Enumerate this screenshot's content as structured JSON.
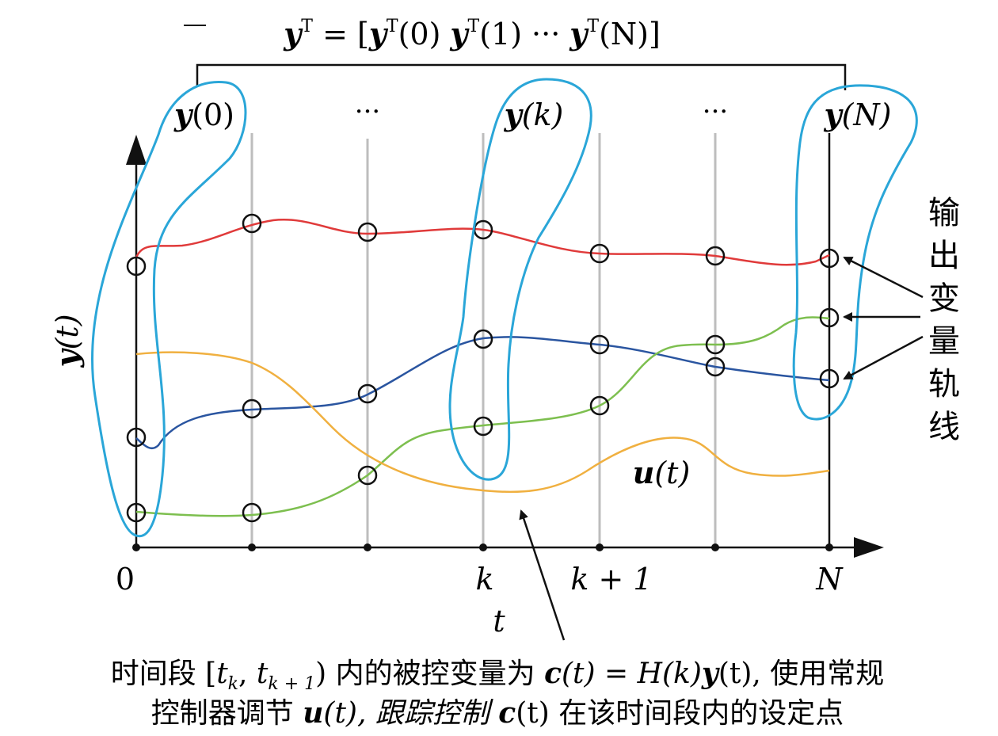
{
  "header": {
    "vector_lhs": "y",
    "vector_sup": "T",
    "equals_open": " = [",
    "items": [
      {
        "sym": "y",
        "sup": "T",
        "arg": "(0)"
      },
      {
        "sym": "y",
        "sup": "T",
        "arg": "(1)"
      },
      {
        "sym": "···"
      },
      {
        "sym": "y",
        "sup": "T",
        "arg": "(N)"
      }
    ],
    "close": "]"
  },
  "top_labels": {
    "y0": {
      "sym": "y",
      "arg": "(0)"
    },
    "dots1": "···",
    "yk": {
      "sym": "y",
      "arg": "(k)"
    },
    "dots2": "···",
    "yN": {
      "sym": "y",
      "arg": "(N)"
    }
  },
  "axes": {
    "y_label": {
      "sym": "y",
      "arg": "(t)"
    },
    "x_label": "t",
    "ticks": [
      "0",
      "k",
      "k + 1",
      "N"
    ]
  },
  "side_label": [
    "输",
    "出",
    "变",
    "量",
    "轨",
    "线"
  ],
  "u_label": {
    "sym": "u",
    "arg": "(t)"
  },
  "caption": {
    "line1_a": "时间段 [",
    "line1_tk": "t",
    "line1_k": "k",
    "line1_sep": ", ",
    "line1_tk1": "t",
    "line1_k1": "k + 1",
    "line1_b": ") 内的被控变量为 ",
    "line1_c": "c",
    "line1_c_arg": "(t) = ",
    "line1_H": "H",
    "line1_H_arg": "(k)",
    "line1_y": "y",
    "line1_y_arg": "(t), 使用常规",
    "line2_a": "控制器调节 ",
    "line2_u": "u",
    "line2_u_arg": "(t), 跟踪控制 ",
    "line2_c": "c",
    "line2_c_arg": "(t) 在该时间段内的设定点"
  },
  "colors": {
    "red_curve": "#e03a3a",
    "blue_curve": "#2a55a0",
    "green_curve": "#7dbf4f",
    "orange_curve": "#f0b040",
    "grouping_outline": "#2aa6d8",
    "gridline": "#bdbdbd",
    "axis": "#111111"
  }
}
